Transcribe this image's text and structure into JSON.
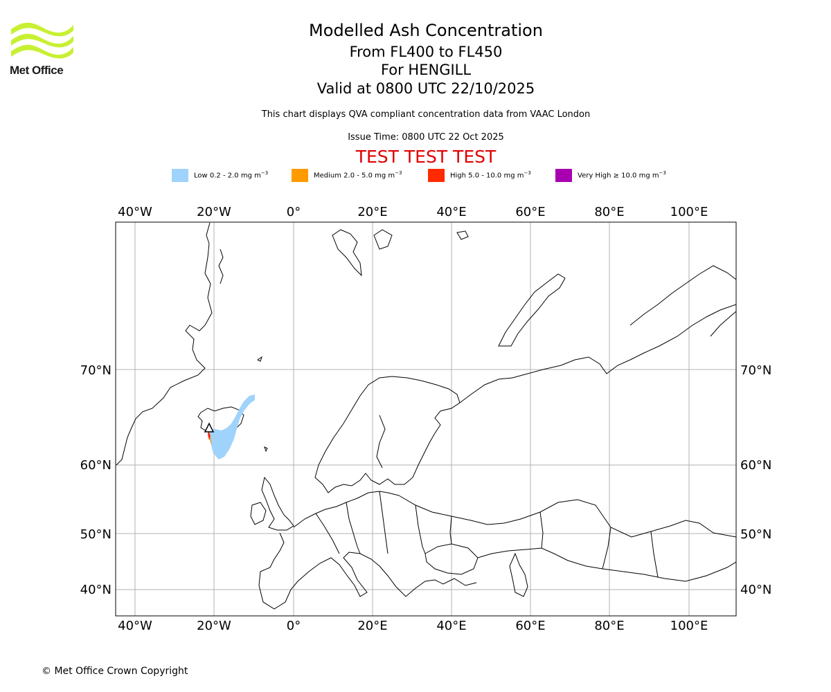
{
  "branding": {
    "logo_text": "Met Office",
    "logo_color": "#c8f032"
  },
  "titles": {
    "main": "Modelled Ash Concentration",
    "levels": "From FL400 to FL450",
    "volcano": "For HENGILL",
    "valid": "Valid at 0800 UTC 22/10/2025",
    "subtitle": "This chart displays QVA compliant concentration data from VAAC London",
    "issue_time": "Issue Time: 0800 UTC 22 Oct 2025",
    "test_banner": "TEST TEST TEST"
  },
  "legend": [
    {
      "label": "Low 0.2 - 2.0 mg m",
      "color": "#9fd3fb"
    },
    {
      "label": "Medium 2.0 - 5.0 mg m",
      "color": "#ff9a00"
    },
    {
      "label": "High 5.0 - 10.0 mg m",
      "color": "#ff2a00"
    },
    {
      "label": "Very High ≥ 10.0 mg m",
      "color": "#a800b0"
    }
  ],
  "legend_unit_exponent": "−3",
  "axes": {
    "longitude_labels": [
      "40°W",
      "20°W",
      "0°",
      "20°E",
      "40°E",
      "60°E",
      "80°E",
      "100°E"
    ],
    "latitude_labels": [
      "70°N",
      "60°N",
      "50°N",
      "40°N"
    ]
  },
  "colors": {
    "grid": "#b0b0b0",
    "coast": "#000000",
    "test": "#e00000"
  },
  "footer": {
    "copyright": "© Met Office Crown Copyright"
  }
}
